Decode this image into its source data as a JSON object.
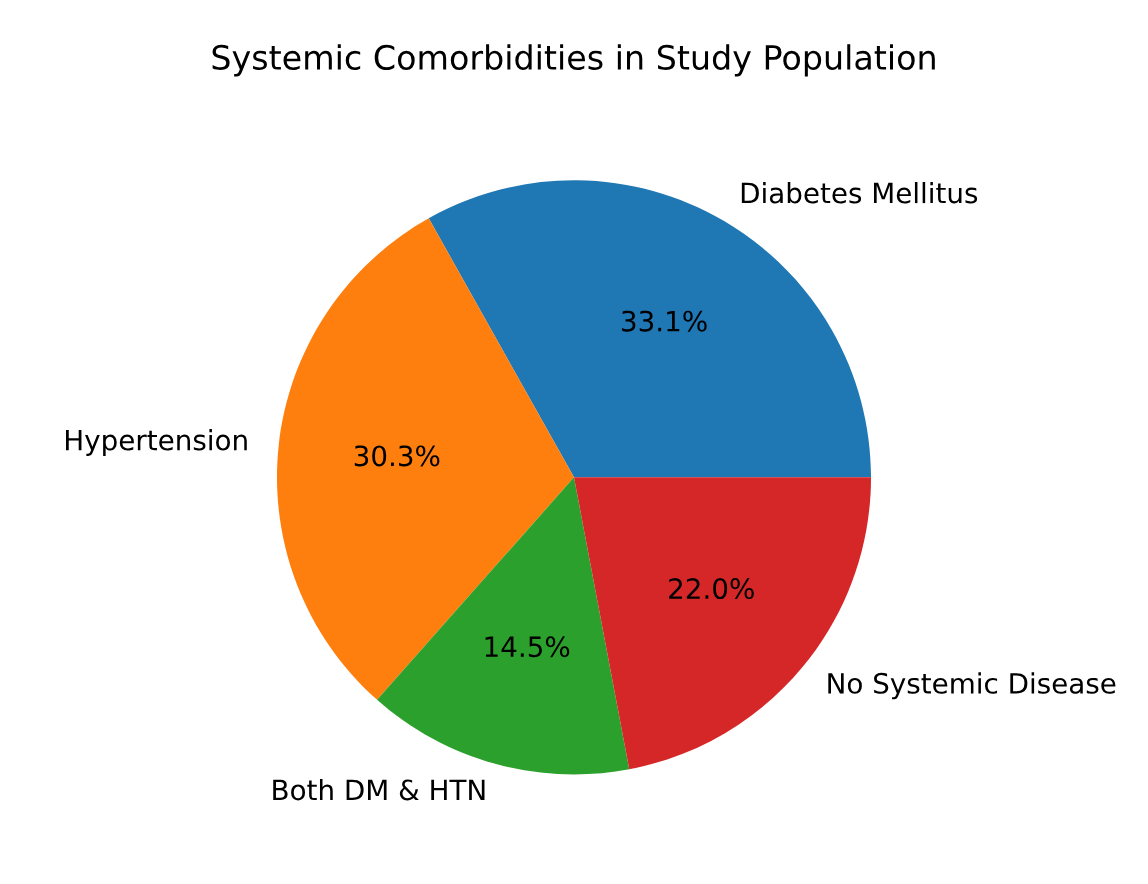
{
  "chart_data": {
    "type": "pie",
    "title": "Systemic Comorbidities in Study Population",
    "categories": [
      "Diabetes Mellitus",
      "Hypertension",
      "Both DM & HTN",
      "No Systemic Disease"
    ],
    "values": [
      33.1,
      30.3,
      14.5,
      22.0
    ],
    "colors": [
      "#1f77b4",
      "#ff7f0e",
      "#2ca02c",
      "#d62728"
    ],
    "value_labels": [
      "33.1%",
      "30.3%",
      "14.5%",
      "22.0%"
    ]
  }
}
